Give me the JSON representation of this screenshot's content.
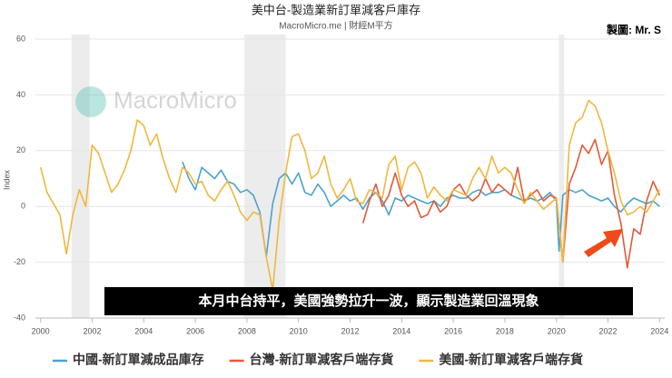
{
  "chart_data": {
    "type": "line",
    "title": "美中台-製造業新訂單減客戶庫存",
    "subtitle": "MacroMicro.me | 財經M平方",
    "credit": "製圖: Mr. S",
    "watermark": "MacroMicro",
    "y_label": "Index",
    "annotation": "本月中台持平，美國強勢拉升一波，顯示製造業回溫現象",
    "xlim": [
      1999.8,
      2024.2
    ],
    "xticks": [
      2000,
      2002,
      2004,
      2006,
      2008,
      2010,
      2012,
      2014,
      2016,
      2018,
      2020,
      2022,
      2024
    ],
    "ylim": [
      -40,
      60
    ],
    "yticks": [
      -40,
      -20,
      0,
      20,
      40,
      60
    ],
    "grid": true,
    "shaded_periods": [
      [
        2001.2,
        2001.9
      ],
      [
        2007.9,
        2009.5
      ],
      [
        2020.1,
        2020.3
      ]
    ],
    "series": [
      {
        "name": "中國-新訂單減成品庫存",
        "color": "#4aa3c9",
        "x": [
          2005.5,
          2005.75,
          2006,
          2006.25,
          2006.5,
          2006.75,
          2007,
          2007.25,
          2007.5,
          2007.75,
          2008,
          2008.25,
          2008.5,
          2008.75,
          2009,
          2009.25,
          2009.5,
          2009.75,
          2010,
          2010.25,
          2010.5,
          2010.75,
          2011,
          2011.25,
          2011.5,
          2011.75,
          2012,
          2012.25,
          2012.5,
          2012.75,
          2013,
          2013.25,
          2013.5,
          2013.75,
          2014,
          2014.25,
          2014.5,
          2014.75,
          2015,
          2015.25,
          2015.5,
          2015.75,
          2016,
          2016.25,
          2016.5,
          2016.75,
          2017,
          2017.25,
          2017.5,
          2017.75,
          2018,
          2018.25,
          2018.5,
          2018.75,
          2019,
          2019.25,
          2019.5,
          2019.75,
          2020,
          2020.1,
          2020.25,
          2020.5,
          2020.75,
          2021,
          2021.25,
          2021.5,
          2021.75,
          2022,
          2022.25,
          2022.5,
          2022.75,
          2023,
          2023.25,
          2023.5,
          2023.75,
          2024
        ],
        "values": [
          16,
          10,
          6,
          14,
          12,
          10,
          13,
          9,
          8,
          5,
          6,
          4,
          -2,
          -18,
          1,
          10,
          12,
          8,
          12,
          5,
          4,
          8,
          5,
          0,
          2,
          4,
          2,
          3,
          -1,
          3,
          5,
          2,
          -3,
          3,
          2,
          4,
          3,
          2,
          1,
          2,
          0,
          3,
          4,
          3,
          3,
          5,
          6,
          4,
          5,
          5,
          6,
          4,
          3,
          2,
          3,
          2,
          3,
          5,
          2,
          -16,
          4,
          6,
          5,
          6,
          4,
          3,
          2,
          3,
          0,
          -2,
          1,
          3,
          2,
          1,
          2,
          0
        ]
      },
      {
        "name": "台灣-新訂單減客戶端存貨",
        "color": "#e05a3a",
        "x": [
          2012.5,
          2012.75,
          2013,
          2013.25,
          2013.5,
          2013.75,
          2014,
          2014.25,
          2014.5,
          2014.75,
          2015,
          2015.25,
          2015.5,
          2015.75,
          2016,
          2016.25,
          2016.5,
          2016.75,
          2017,
          2017.25,
          2017.5,
          2017.75,
          2018,
          2018.25,
          2018.5,
          2018.75,
          2019,
          2019.25,
          2019.5,
          2019.75,
          2020,
          2020.25,
          2020.5,
          2020.75,
          2021,
          2021.25,
          2021.5,
          2021.75,
          2022,
          2022.25,
          2022.5,
          2022.75,
          2023,
          2023.25,
          2023.5,
          2023.75,
          2024
        ],
        "values": [
          -6,
          2,
          8,
          0,
          4,
          12,
          4,
          0,
          2,
          -4,
          -3,
          2,
          -2,
          0,
          6,
          8,
          4,
          2,
          4,
          10,
          5,
          8,
          6,
          4,
          14,
          2,
          4,
          6,
          2,
          4,
          3,
          -20,
          8,
          14,
          22,
          19,
          24,
          15,
          20,
          4,
          -6,
          -22,
          -8,
          -10,
          2,
          9,
          4
        ]
      },
      {
        "name": "美國-新訂單減客戶端存貨",
        "color": "#f0b73c",
        "x": [
          2000,
          2000.25,
          2000.5,
          2000.75,
          2001,
          2001.25,
          2001.5,
          2001.75,
          2002,
          2002.25,
          2002.5,
          2002.75,
          2003,
          2003.25,
          2003.5,
          2003.75,
          2004,
          2004.25,
          2004.5,
          2004.75,
          2005,
          2005.25,
          2005.5,
          2005.75,
          2006,
          2006.25,
          2006.5,
          2006.75,
          2007,
          2007.25,
          2007.5,
          2007.75,
          2008,
          2008.25,
          2008.5,
          2008.75,
          2009,
          2009.25,
          2009.5,
          2009.75,
          2010,
          2010.25,
          2010.5,
          2010.75,
          2011,
          2011.25,
          2011.5,
          2011.75,
          2012,
          2012.25,
          2012.5,
          2012.75,
          2013,
          2013.25,
          2013.5,
          2013.75,
          2014,
          2014.25,
          2014.5,
          2014.75,
          2015,
          2015.25,
          2015.5,
          2015.75,
          2016,
          2016.25,
          2016.5,
          2016.75,
          2017,
          2017.25,
          2017.5,
          2017.75,
          2018,
          2018.25,
          2018.5,
          2018.75,
          2019,
          2019.25,
          2019.5,
          2019.75,
          2020,
          2020.25,
          2020.5,
          2020.75,
          2021,
          2021.25,
          2021.5,
          2021.75,
          2022,
          2022.25,
          2022.5,
          2022.75,
          2023,
          2023.25,
          2023.5,
          2023.75,
          2024
        ],
        "values": [
          14,
          5,
          1,
          -3,
          -17,
          -3,
          6,
          0,
          22,
          19,
          12,
          5,
          8,
          13,
          20,
          31,
          29,
          22,
          26,
          17,
          10,
          5,
          14,
          12,
          8,
          9,
          4,
          2,
          6,
          9,
          4,
          -2,
          -5,
          -2,
          -3,
          -18,
          -30,
          -5,
          12,
          25,
          26,
          20,
          10,
          12,
          18,
          8,
          3,
          6,
          10,
          2,
          1,
          6,
          5,
          3,
          15,
          18,
          6,
          14,
          16,
          12,
          3,
          7,
          4,
          2,
          6,
          5,
          4,
          10,
          14,
          10,
          18,
          12,
          14,
          12,
          6,
          1,
          5,
          2,
          -1,
          1,
          3,
          -20,
          22,
          30,
          32,
          38,
          36,
          30,
          20,
          12,
          2,
          -3,
          -2,
          0,
          -2,
          2,
          6
        ]
      }
    ]
  }
}
